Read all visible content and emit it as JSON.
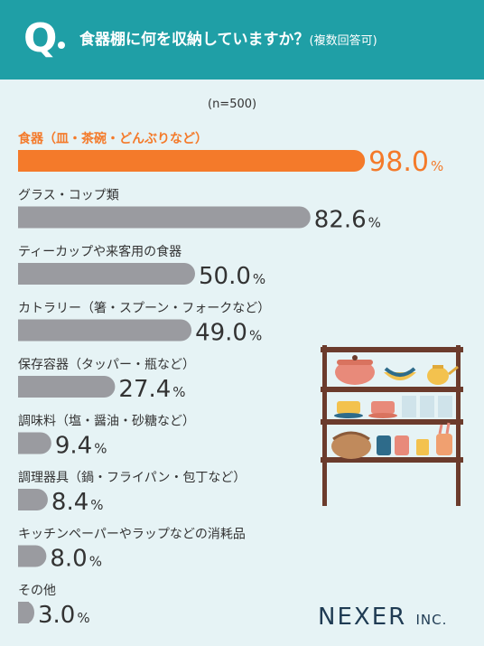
{
  "header": {
    "q_mark": "Q",
    "title": "食器棚に何を収納していますか？",
    "subtitle": "(複数回答可)"
  },
  "sample_label": "(n=500)",
  "chart_data": {
    "type": "bar",
    "orientation": "horizontal",
    "categories": [
      "食器（皿・茶碗・どんぶりなど）",
      "グラス・コップ類",
      "ティーカップや来客用の食器",
      "カトラリー（箸・スプーン・フォークなど）",
      "保存容器（タッパー・瓶など）",
      "調味料（塩・醤油・砂糖など）",
      "調理器具（鍋・フライパン・包丁など）",
      "キッチンペーパーやラップなどの消耗品",
      "その他"
    ],
    "values": [
      98.0,
      82.6,
      50.0,
      49.0,
      27.4,
      9.4,
      8.4,
      8.0,
      3.0
    ],
    "value_labels": [
      "98.0",
      "82.6",
      "50.0",
      "49.0",
      "27.4",
      "9.4",
      "8.4",
      "8.0",
      "3.0"
    ],
    "unit": "%",
    "xlim": [
      0,
      100
    ],
    "highlight_color": "#f47a2a",
    "bar_color": "#9a9ba0",
    "highlight_index": 0
  },
  "brand": {
    "name": "NEXER",
    "suffix": "INC."
  },
  "colors": {
    "header_bg": "#1f9fa6",
    "page_bg": "#e6f3f5",
    "highlight": "#f47a2a",
    "bar": "#9a9ba0",
    "logo": "#1f3b53"
  }
}
